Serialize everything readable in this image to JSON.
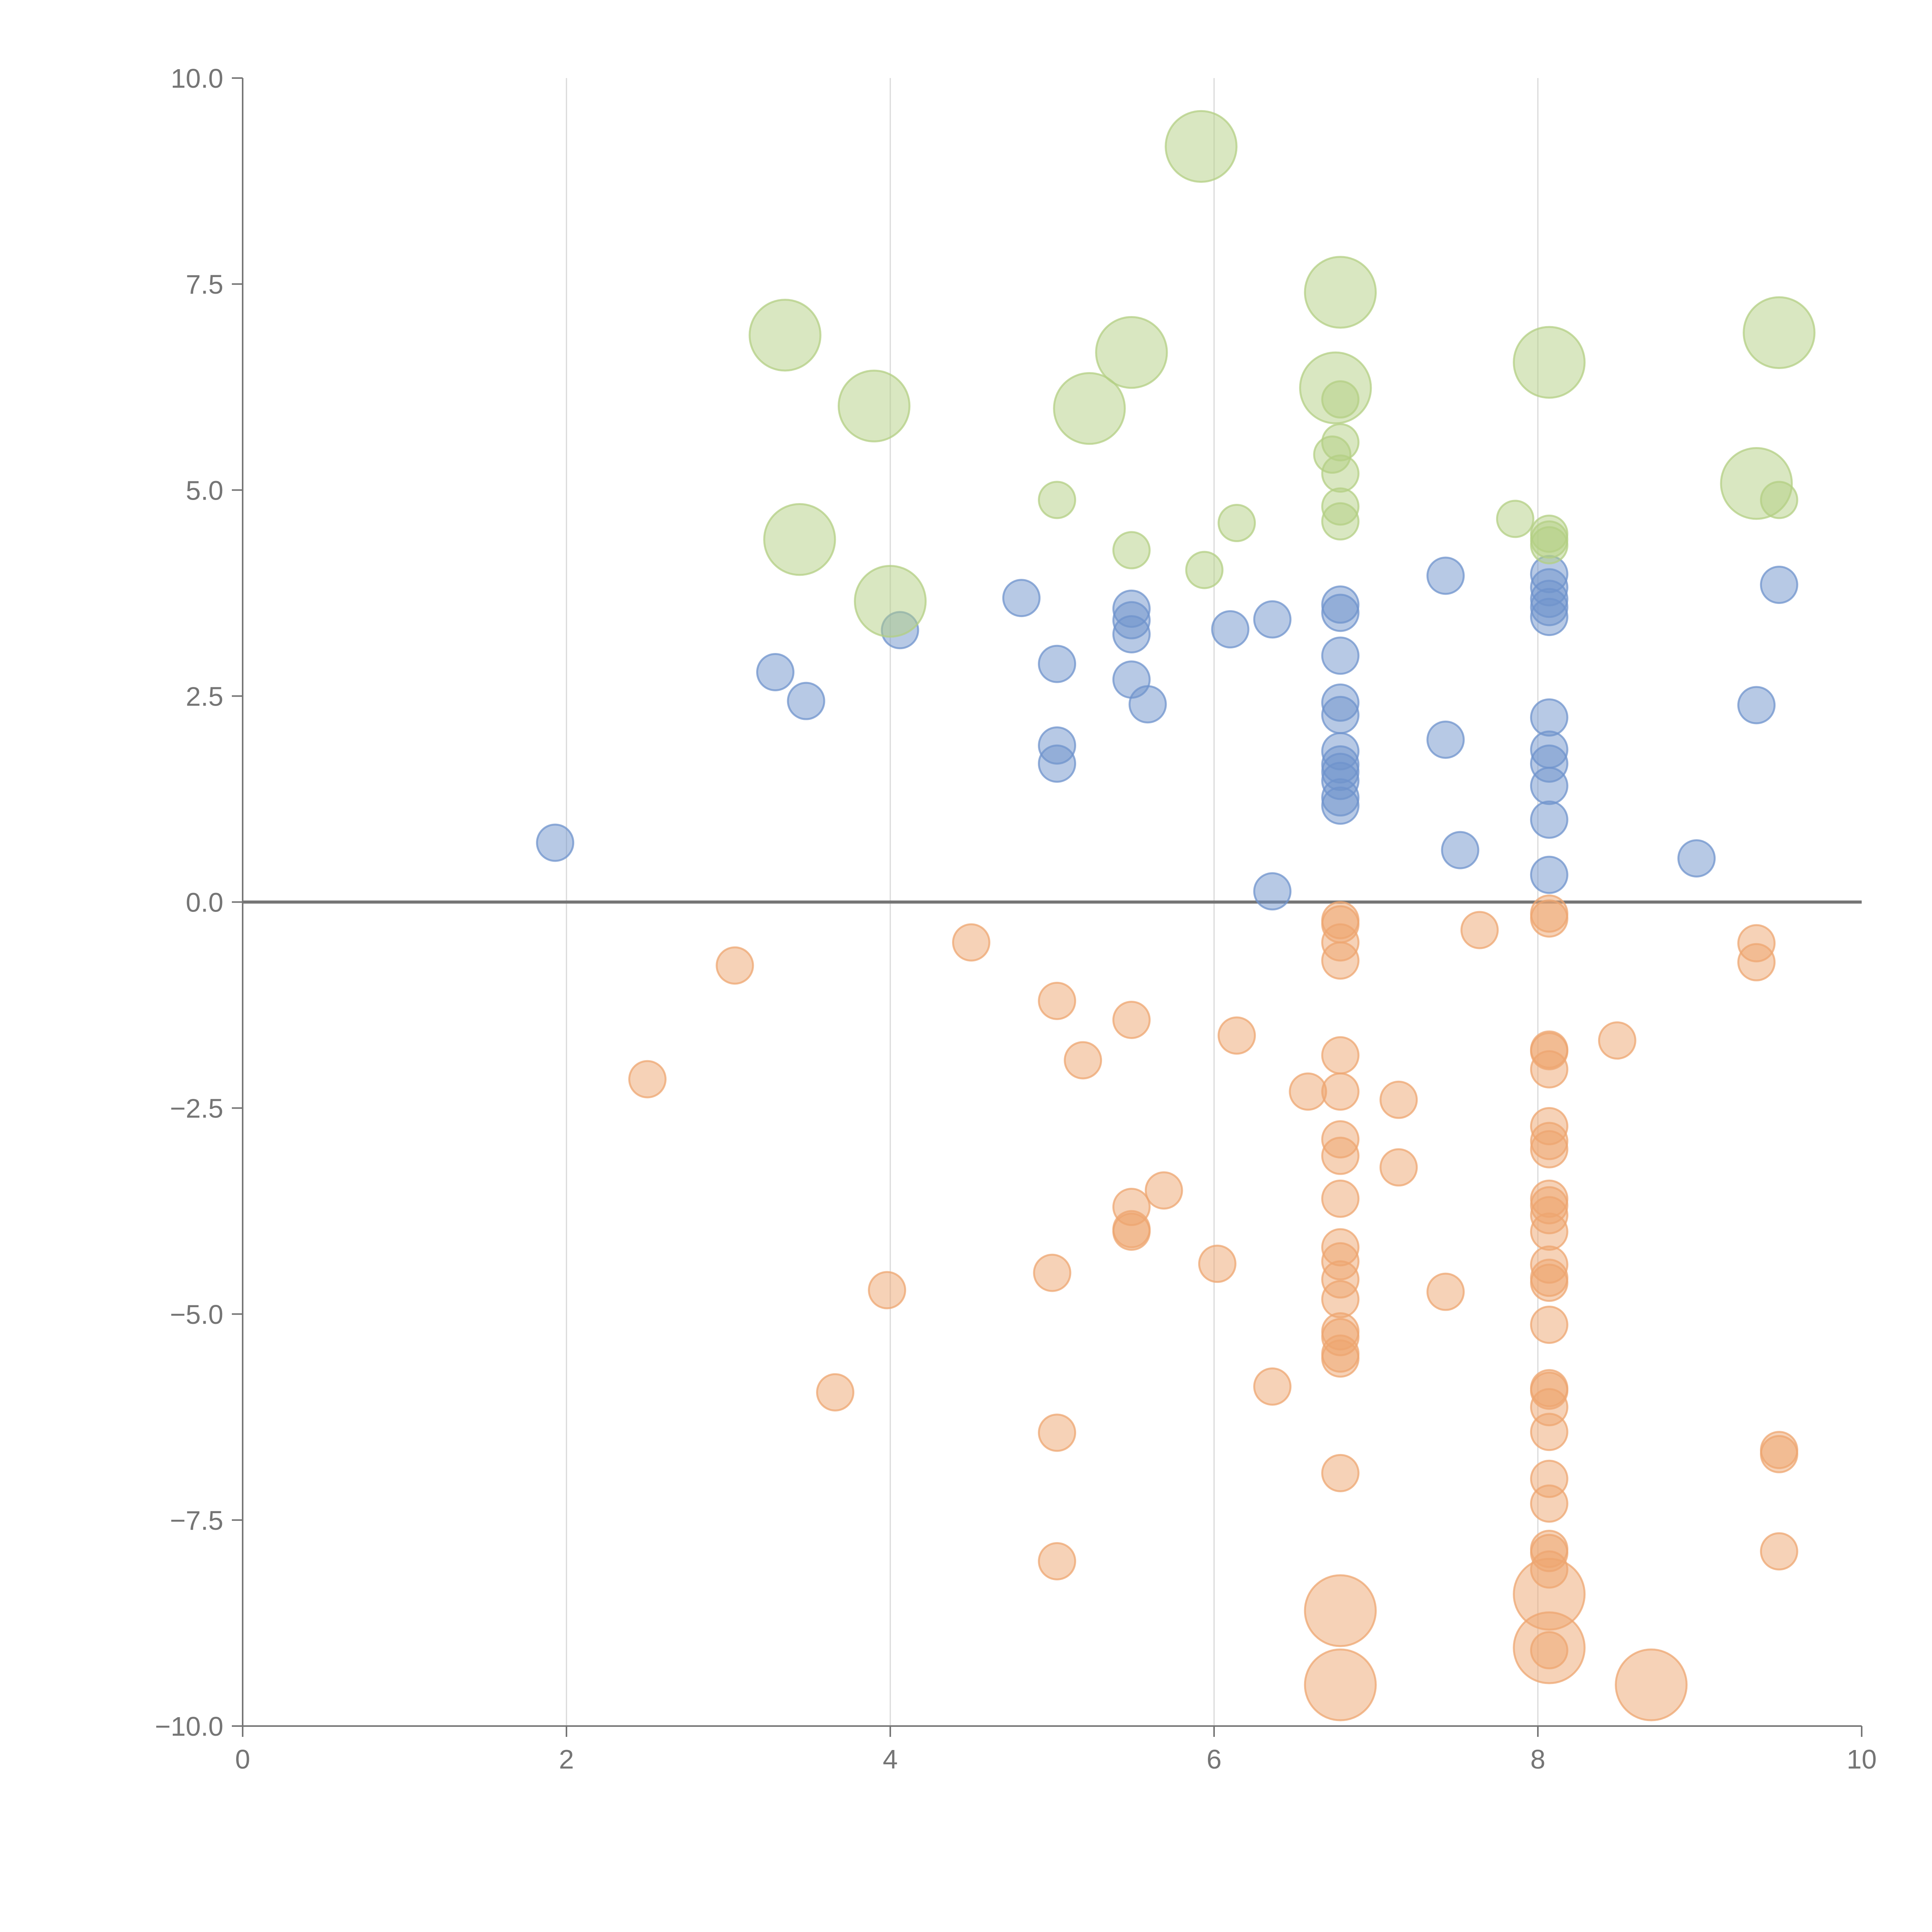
{
  "chart_data": {
    "type": "scatter",
    "title": "",
    "xlabel": "",
    "ylabel": "",
    "xlim": [
      0,
      10
    ],
    "ylim": [
      -10,
      10
    ],
    "x_ticks": [
      "0",
      "2",
      "4",
      "6",
      "8",
      "10"
    ],
    "y_ticks": [
      "10.0",
      "7.5",
      "5.0",
      "2.5",
      "0.0",
      "−2.5",
      "−5.0",
      "−7.5",
      "−10.0"
    ],
    "vertical_grid": true,
    "horizontal_grid": false,
    "zero_line": true,
    "marker_opacity": 0.5,
    "colors": {
      "blue": "#6f93cc",
      "orange": "#eea570",
      "green": "#b3cf83",
      "axis": "#757575",
      "grid": "#d9d9d9"
    },
    "series": [
      {
        "color_key": "blue",
        "points": [
          {
            "x": 1.93,
            "y": 0.72,
            "size": 1
          },
          {
            "x": 3.29,
            "y": 2.79,
            "size": 1
          },
          {
            "x": 3.48,
            "y": 2.44,
            "size": 1
          },
          {
            "x": 4.06,
            "y": 3.3,
            "size": 1
          },
          {
            "x": 4.81,
            "y": 3.69,
            "size": 1
          },
          {
            "x": 5.03,
            "y": 2.89,
            "size": 1
          },
          {
            "x": 5.03,
            "y": 1.9,
            "size": 1
          },
          {
            "x": 5.03,
            "y": 1.68,
            "size": 1
          },
          {
            "x": 5.49,
            "y": 3.56,
            "size": 1
          },
          {
            "x": 5.49,
            "y": 3.42,
            "size": 1
          },
          {
            "x": 5.49,
            "y": 3.25,
            "size": 1
          },
          {
            "x": 5.49,
            "y": 2.7,
            "size": 1
          },
          {
            "x": 5.59,
            "y": 2.4,
            "size": 1
          },
          {
            "x": 6.1,
            "y": 3.31,
            "size": 1
          },
          {
            "x": 6.36,
            "y": 3.43,
            "size": 1
          },
          {
            "x": 6.36,
            "y": 0.13,
            "size": 1
          },
          {
            "x": 6.78,
            "y": 3.61,
            "size": 1
          },
          {
            "x": 6.78,
            "y": 3.51,
            "size": 1
          },
          {
            "x": 6.78,
            "y": 2.99,
            "size": 1
          },
          {
            "x": 6.78,
            "y": 2.42,
            "size": 1
          },
          {
            "x": 6.78,
            "y": 2.27,
            "size": 1
          },
          {
            "x": 6.78,
            "y": 1.83,
            "size": 1
          },
          {
            "x": 6.78,
            "y": 1.67,
            "size": 1
          },
          {
            "x": 6.78,
            "y": 1.58,
            "size": 1
          },
          {
            "x": 6.78,
            "y": 1.47,
            "size": 1
          },
          {
            "x": 6.78,
            "y": 1.27,
            "size": 1
          },
          {
            "x": 6.78,
            "y": 1.17,
            "size": 1
          },
          {
            "x": 7.43,
            "y": 3.96,
            "size": 1
          },
          {
            "x": 7.43,
            "y": 1.97,
            "size": 1
          },
          {
            "x": 7.52,
            "y": 0.63,
            "size": 1
          },
          {
            "x": 8.07,
            "y": 3.98,
            "size": 1
          },
          {
            "x": 8.07,
            "y": 3.82,
            "size": 1
          },
          {
            "x": 8.07,
            "y": 3.68,
            "size": 1
          },
          {
            "x": 8.07,
            "y": 3.58,
            "size": 1
          },
          {
            "x": 8.07,
            "y": 3.46,
            "size": 1
          },
          {
            "x": 8.07,
            "y": 2.24,
            "size": 1
          },
          {
            "x": 8.07,
            "y": 1.85,
            "size": 1
          },
          {
            "x": 8.07,
            "y": 1.68,
            "size": 1
          },
          {
            "x": 8.07,
            "y": 1.41,
            "size": 1
          },
          {
            "x": 8.07,
            "y": 1.0,
            "size": 1
          },
          {
            "x": 8.07,
            "y": 0.33,
            "size": 1
          },
          {
            "x": 8.98,
            "y": 0.53,
            "size": 1
          },
          {
            "x": 9.35,
            "y": 2.39,
            "size": 1
          },
          {
            "x": 9.49,
            "y": 3.85,
            "size": 1
          }
        ]
      },
      {
        "color_key": "orange",
        "points": [
          {
            "x": 2.5,
            "y": -2.15,
            "size": 1
          },
          {
            "x": 3.04,
            "y": -0.77,
            "size": 1
          },
          {
            "x": 3.66,
            "y": -5.95,
            "size": 1
          },
          {
            "x": 3.98,
            "y": -4.71,
            "size": 1
          },
          {
            "x": 4.5,
            "y": -0.49,
            "size": 1
          },
          {
            "x": 5.0,
            "y": -4.5,
            "size": 1
          },
          {
            "x": 5.03,
            "y": -1.2,
            "size": 1
          },
          {
            "x": 5.03,
            "y": -6.44,
            "size": 1
          },
          {
            "x": 5.03,
            "y": -8.0,
            "size": 1
          },
          {
            "x": 5.19,
            "y": -1.92,
            "size": 1
          },
          {
            "x": 5.49,
            "y": -1.43,
            "size": 1
          },
          {
            "x": 5.49,
            "y": -3.7,
            "size": 1
          },
          {
            "x": 5.49,
            "y": -3.97,
            "size": 1
          },
          {
            "x": 5.49,
            "y": -4.0,
            "size": 1
          },
          {
            "x": 5.69,
            "y": -3.5,
            "size": 1
          },
          {
            "x": 6.02,
            "y": -4.39,
            "size": 1
          },
          {
            "x": 6.14,
            "y": -1.62,
            "size": 1
          },
          {
            "x": 6.36,
            "y": -5.88,
            "size": 1
          },
          {
            "x": 6.58,
            "y": -2.3,
            "size": 1
          },
          {
            "x": 6.78,
            "y": -0.22,
            "size": 1
          },
          {
            "x": 6.78,
            "y": -0.27,
            "size": 1
          },
          {
            "x": 6.78,
            "y": -0.49,
            "size": 1
          },
          {
            "x": 6.78,
            "y": -0.71,
            "size": 1
          },
          {
            "x": 6.78,
            "y": -1.86,
            "size": 1
          },
          {
            "x": 6.78,
            "y": -2.3,
            "size": 1
          },
          {
            "x": 6.78,
            "y": -2.88,
            "size": 1
          },
          {
            "x": 6.78,
            "y": -3.08,
            "size": 1
          },
          {
            "x": 6.78,
            "y": -3.6,
            "size": 1
          },
          {
            "x": 6.78,
            "y": -4.19,
            "size": 1
          },
          {
            "x": 6.78,
            "y": -4.36,
            "size": 1
          },
          {
            "x": 6.78,
            "y": -4.58,
            "size": 1
          },
          {
            "x": 6.78,
            "y": -4.82,
            "size": 1
          },
          {
            "x": 6.78,
            "y": -5.21,
            "size": 1
          },
          {
            "x": 6.78,
            "y": -5.28,
            "size": 1
          },
          {
            "x": 6.78,
            "y": -5.48,
            "size": 1
          },
          {
            "x": 6.78,
            "y": -5.54,
            "size": 1
          },
          {
            "x": 6.78,
            "y": -6.93,
            "size": 1
          },
          {
            "x": 6.78,
            "y": -8.6,
            "size": 3
          },
          {
            "x": 6.78,
            "y": -9.5,
            "size": 3
          },
          {
            "x": 7.14,
            "y": -2.4,
            "size": 1
          },
          {
            "x": 7.14,
            "y": -3.22,
            "size": 1
          },
          {
            "x": 7.43,
            "y": -4.73,
            "size": 1
          },
          {
            "x": 7.64,
            "y": -0.34,
            "size": 1
          },
          {
            "x": 8.07,
            "y": -0.14,
            "size": 1
          },
          {
            "x": 8.07,
            "y": -0.2,
            "size": 1
          },
          {
            "x": 8.07,
            "y": -1.79,
            "size": 1
          },
          {
            "x": 8.07,
            "y": -1.81,
            "size": 1
          },
          {
            "x": 8.07,
            "y": -2.03,
            "size": 1
          },
          {
            "x": 8.07,
            "y": -2.72,
            "size": 1
          },
          {
            "x": 8.07,
            "y": -2.9,
            "size": 1
          },
          {
            "x": 8.07,
            "y": -3.0,
            "size": 1
          },
          {
            "x": 8.07,
            "y": -3.6,
            "size": 1
          },
          {
            "x": 8.07,
            "y": -3.68,
            "size": 1
          },
          {
            "x": 8.07,
            "y": -3.8,
            "size": 1
          },
          {
            "x": 8.07,
            "y": -4.0,
            "size": 1
          },
          {
            "x": 8.07,
            "y": -4.4,
            "size": 1
          },
          {
            "x": 8.07,
            "y": -4.56,
            "size": 1
          },
          {
            "x": 8.07,
            "y": -4.62,
            "size": 1
          },
          {
            "x": 8.07,
            "y": -5.13,
            "size": 1
          },
          {
            "x": 8.07,
            "y": -5.9,
            "size": 1
          },
          {
            "x": 8.07,
            "y": -5.93,
            "size": 1
          },
          {
            "x": 8.07,
            "y": -6.13,
            "size": 1
          },
          {
            "x": 8.07,
            "y": -6.43,
            "size": 1
          },
          {
            "x": 8.07,
            "y": -7.0,
            "size": 1
          },
          {
            "x": 8.07,
            "y": -7.3,
            "size": 1
          },
          {
            "x": 8.07,
            "y": -7.85,
            "size": 1
          },
          {
            "x": 8.07,
            "y": -7.9,
            "size": 1
          },
          {
            "x": 8.07,
            "y": -8.1,
            "size": 1
          },
          {
            "x": 8.07,
            "y": -9.08,
            "size": 1
          },
          {
            "x": 8.07,
            "y": -8.4,
            "size": 3
          },
          {
            "x": 8.07,
            "y": -9.05,
            "size": 3
          },
          {
            "x": 8.49,
            "y": -1.68,
            "size": 1
          },
          {
            "x": 8.7,
            "y": -9.5,
            "size": 3
          },
          {
            "x": 9.35,
            "y": -0.5,
            "size": 1
          },
          {
            "x": 9.35,
            "y": -0.73,
            "size": 1
          },
          {
            "x": 9.49,
            "y": -6.65,
            "size": 1
          },
          {
            "x": 9.49,
            "y": -6.7,
            "size": 1
          },
          {
            "x": 9.49,
            "y": -7.88,
            "size": 1
          }
        ]
      },
      {
        "color_key": "green",
        "points": [
          {
            "x": 3.35,
            "y": 6.88,
            "size": 3
          },
          {
            "x": 3.44,
            "y": 4.4,
            "size": 3
          },
          {
            "x": 3.9,
            "y": 6.02,
            "size": 3
          },
          {
            "x": 4.0,
            "y": 3.65,
            "size": 3
          },
          {
            "x": 5.03,
            "y": 4.88,
            "size": 1
          },
          {
            "x": 5.23,
            "y": 5.99,
            "size": 3
          },
          {
            "x": 5.49,
            "y": 6.67,
            "size": 3
          },
          {
            "x": 5.49,
            "y": 4.27,
            "size": 1
          },
          {
            "x": 5.92,
            "y": 9.17,
            "size": 3
          },
          {
            "x": 5.94,
            "y": 4.03,
            "size": 1
          },
          {
            "x": 6.14,
            "y": 4.6,
            "size": 1
          },
          {
            "x": 6.75,
            "y": 6.24,
            "size": 3
          },
          {
            "x": 6.78,
            "y": 7.4,
            "size": 3
          },
          {
            "x": 6.78,
            "y": 6.1,
            "size": 1
          },
          {
            "x": 6.78,
            "y": 5.58,
            "size": 1
          },
          {
            "x": 6.78,
            "y": 5.2,
            "size": 1
          },
          {
            "x": 6.78,
            "y": 4.8,
            "size": 1
          },
          {
            "x": 6.78,
            "y": 4.62,
            "size": 1
          },
          {
            "x": 6.73,
            "y": 5.43,
            "size": 1
          },
          {
            "x": 7.86,
            "y": 4.65,
            "size": 1
          },
          {
            "x": 8.07,
            "y": 6.55,
            "size": 3
          },
          {
            "x": 8.07,
            "y": 4.47,
            "size": 1
          },
          {
            "x": 8.07,
            "y": 4.4,
            "size": 1
          },
          {
            "x": 8.07,
            "y": 4.33,
            "size": 1
          },
          {
            "x": 9.35,
            "y": 5.08,
            "size": 3
          },
          {
            "x": 9.49,
            "y": 6.91,
            "size": 3
          },
          {
            "x": 9.49,
            "y": 4.88,
            "size": 1
          }
        ]
      }
    ]
  }
}
